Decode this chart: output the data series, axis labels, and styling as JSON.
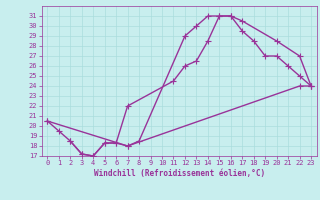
{
  "xlabel": "Windchill (Refroidissement éolien,°C)",
  "background_color": "#c8eeee",
  "line_color": "#993399",
  "grid_color": "#aadddd",
  "xlim": [
    -0.5,
    23.5
  ],
  "ylim": [
    17,
    32
  ],
  "xticks": [
    0,
    1,
    2,
    3,
    4,
    5,
    6,
    7,
    8,
    9,
    10,
    11,
    12,
    13,
    14,
    15,
    16,
    17,
    18,
    19,
    20,
    21,
    22,
    23
  ],
  "yticks": [
    17,
    18,
    19,
    20,
    21,
    22,
    23,
    24,
    25,
    26,
    27,
    28,
    29,
    30,
    31
  ],
  "curve1_x": [
    0,
    1,
    2,
    3,
    4,
    5,
    6,
    7,
    8,
    12,
    13,
    14,
    15,
    16,
    17,
    20,
    22,
    23
  ],
  "curve1_y": [
    20.5,
    19.5,
    18.5,
    17.2,
    17.0,
    18.3,
    18.3,
    18.0,
    18.5,
    29.0,
    30.0,
    31.0,
    31.0,
    31.0,
    30.5,
    28.5,
    27.0,
    24.0
  ],
  "curve2_x": [
    2,
    3,
    4,
    5,
    6,
    7,
    11,
    12,
    13,
    14,
    15,
    16,
    17,
    18,
    19,
    20,
    21,
    22,
    23
  ],
  "curve2_y": [
    18.5,
    17.2,
    17.0,
    18.3,
    18.3,
    22.0,
    24.5,
    26.0,
    26.5,
    28.5,
    31.0,
    31.0,
    29.5,
    28.5,
    27.0,
    27.0,
    26.0,
    25.0,
    24.0
  ],
  "curve3_x": [
    0,
    7,
    22,
    23
  ],
  "curve3_y": [
    20.5,
    18.0,
    24.0,
    24.0
  ],
  "marker": "+",
  "markersize": 4,
  "linewidth": 1.0,
  "tick_fontsize": 5,
  "label_fontsize": 5.5
}
